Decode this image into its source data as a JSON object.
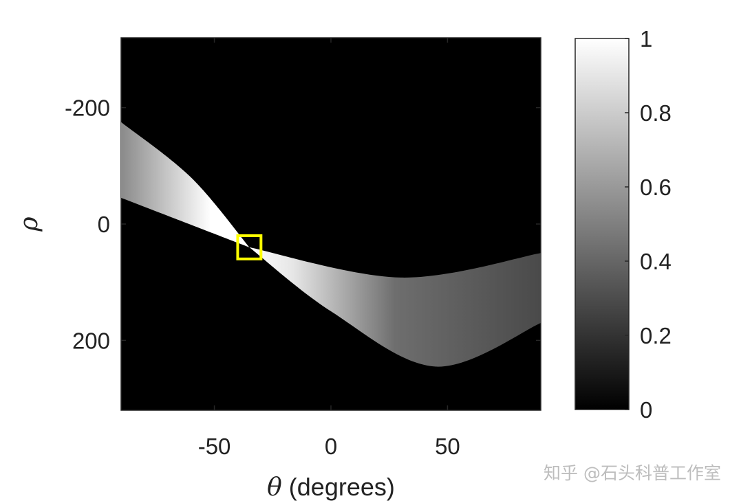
{
  "chart_data": {
    "type": "heatmap",
    "title": "",
    "xlabel": {
      "symbol": "θ",
      "text": " (degrees)"
    },
    "ylabel": {
      "symbol": "ρ"
    },
    "xlim": [
      -90,
      90
    ],
    "ylim": [
      -320,
      320
    ],
    "y_reversed": true,
    "x_ticks": [
      -50,
      0,
      50
    ],
    "x_tick_labels": [
      "-50",
      "0",
      "50"
    ],
    "y_ticks": [
      -200,
      0,
      200
    ],
    "y_tick_labels": [
      "-200",
      "0",
      "200"
    ],
    "colormap": "gray",
    "colorbar": {
      "range": [
        0,
        1
      ],
      "ticks": [
        0,
        0.2,
        0.4,
        0.6,
        0.8,
        1
      ],
      "tick_labels": [
        "0",
        "0.2",
        "0.4",
        "0.6",
        "0.8",
        "1"
      ]
    },
    "bands": {
      "line_1_rho_at_theta": [
        {
          "theta": -90,
          "rho": -175
        },
        {
          "theta": -60,
          "rho": -80
        },
        {
          "theta": -35,
          "rho": 40
        },
        {
          "theta": 0,
          "rho": 150
        },
        {
          "theta": 45,
          "rho": 245
        },
        {
          "theta": 90,
          "rho": 170
        }
      ],
      "line_2_rho_at_theta": [
        {
          "theta": -90,
          "rho": -45
        },
        {
          "theta": -35,
          "rho": 40
        },
        {
          "theta": 30,
          "rho": 92
        },
        {
          "theta": 90,
          "rho": 50
        }
      ]
    },
    "highlight": {
      "theta": -35,
      "rho": 40,
      "half_width_theta": 5,
      "half_height_rho": 20,
      "color": "#ffff00"
    }
  },
  "watermark": "知乎 @石头科普工作室"
}
